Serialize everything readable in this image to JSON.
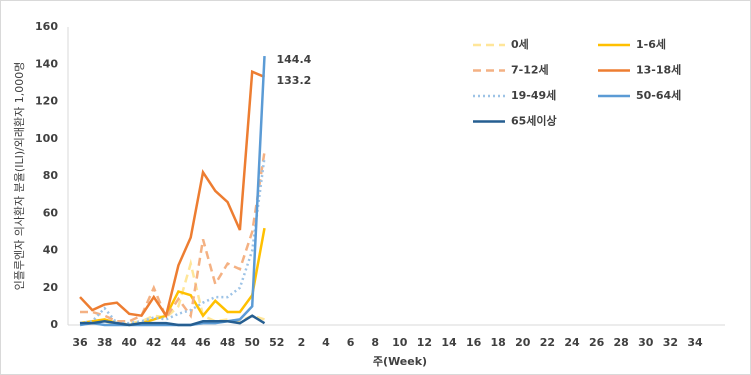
{
  "chart_data": {
    "type": "line",
    "y_title": "인플루엔자 의사환자 분율(ILI)/외래환자 1,000명",
    "x_title": "주(Week)",
    "categories": [
      "36",
      null,
      "38",
      null,
      "40",
      null,
      "42",
      null,
      "44",
      null,
      "46",
      null,
      "48",
      null,
      "50",
      null,
      "52",
      null,
      "2",
      null,
      "4",
      null,
      "6",
      null,
      "8",
      null,
      "10",
      null,
      "12",
      null,
      "14",
      null,
      "16",
      null,
      "18",
      null,
      "20",
      null,
      "22",
      null,
      "24",
      null,
      "26",
      null,
      "28",
      null,
      "30",
      null,
      "32",
      null,
      "34",
      null
    ],
    "ylim": [
      0,
      160
    ],
    "yticks": [
      0,
      20,
      40,
      60,
      80,
      100,
      120,
      140,
      160
    ],
    "series": [
      {
        "name": "0세",
        "color": "#ffe699",
        "dash": "dashed",
        "values": [
          1,
          1,
          2,
          0,
          1,
          2,
          5,
          4,
          10,
          33,
          5,
          2,
          3,
          2,
          5,
          3,
          null,
          null,
          null,
          null,
          null,
          null,
          null,
          null,
          null,
          null,
          null,
          null,
          null,
          null,
          null,
          null,
          null,
          null,
          null,
          null,
          null,
          null,
          null,
          null,
          null,
          null,
          null,
          null,
          null,
          null,
          null,
          null,
          null,
          null,
          null,
          null
        ]
      },
      {
        "name": "1-6세",
        "color": "#ffc000",
        "dash": "solid",
        "values": [
          1,
          2,
          3,
          1,
          0,
          1,
          3,
          5,
          18,
          16,
          5,
          13,
          7,
          7,
          16,
          52,
          null,
          null,
          null,
          null,
          null,
          null,
          null,
          null,
          null,
          null,
          null,
          null,
          null,
          null,
          null,
          null,
          null,
          null,
          null,
          null,
          null,
          null,
          null,
          null,
          null,
          null,
          null,
          null,
          null,
          null,
          null,
          null,
          null,
          null,
          null,
          null
        ]
      },
      {
        "name": "7-12세",
        "color": "#f4b183",
        "dash": "dashed",
        "values": [
          7,
          7,
          5,
          2,
          2,
          5,
          20,
          4,
          14,
          5,
          46,
          22,
          33,
          30,
          50,
          93,
          null,
          null,
          null,
          null,
          null,
          null,
          null,
          null,
          null,
          null,
          null,
          null,
          null,
          null,
          null,
          null,
          null,
          null,
          null,
          null,
          null,
          null,
          null,
          null,
          null,
          null,
          null,
          null,
          null,
          null,
          null,
          null,
          null,
          null,
          null,
          null
        ]
      },
      {
        "name": "13-18세",
        "color": "#ed7d31",
        "dash": "solid",
        "values": [
          15,
          8,
          11,
          12,
          6,
          5,
          15,
          5,
          32,
          47,
          82,
          72,
          66,
          51,
          136,
          133.2,
          null,
          null,
          null,
          null,
          null,
          null,
          null,
          null,
          null,
          null,
          null,
          null,
          null,
          null,
          null,
          null,
          null,
          null,
          null,
          null,
          null,
          null,
          null,
          null,
          null,
          null,
          null,
          null,
          null,
          null,
          null,
          null,
          null,
          null,
          null,
          null
        ]
      },
      {
        "name": "19-49세",
        "color": "#9dc3e6",
        "dash": "dotted",
        "values": [
          1,
          2,
          9,
          1,
          1,
          2,
          4,
          3,
          6,
          8,
          12,
          15,
          15,
          20,
          40,
          90,
          null,
          null,
          null,
          null,
          null,
          null,
          null,
          null,
          null,
          null,
          null,
          null,
          null,
          null,
          null,
          null,
          null,
          null,
          null,
          null,
          null,
          null,
          null,
          null,
          null,
          null,
          null,
          null,
          null,
          null,
          null,
          null,
          null,
          null,
          null,
          null
        ]
      },
      {
        "name": "50-64세",
        "color": "#5b9bd5",
        "dash": "solid",
        "values": [
          0,
          1,
          0,
          0,
          0,
          0,
          0,
          0,
          0,
          0,
          1,
          1,
          2,
          3,
          10,
          144.4,
          null,
          null,
          null,
          null,
          null,
          null,
          null,
          null,
          null,
          null,
          null,
          null,
          null,
          null,
          null,
          null,
          null,
          null,
          null,
          null,
          null,
          null,
          null,
          null,
          null,
          null,
          null,
          null,
          null,
          null,
          null,
          null,
          null,
          null,
          null,
          null
        ]
      },
      {
        "name": "65세이상",
        "color": "#255e91",
        "dash": "solid",
        "values": [
          1,
          1,
          2,
          1,
          0,
          1,
          1,
          1,
          0,
          0,
          2,
          2,
          2,
          1,
          5,
          1,
          null,
          null,
          null,
          null,
          null,
          null,
          null,
          null,
          null,
          null,
          null,
          null,
          null,
          null,
          null,
          null,
          null,
          null,
          null,
          null,
          null,
          null,
          null,
          null,
          null,
          null,
          null,
          null,
          null,
          null,
          null,
          null,
          null,
          null,
          null,
          null
        ]
      }
    ]
  }
}
